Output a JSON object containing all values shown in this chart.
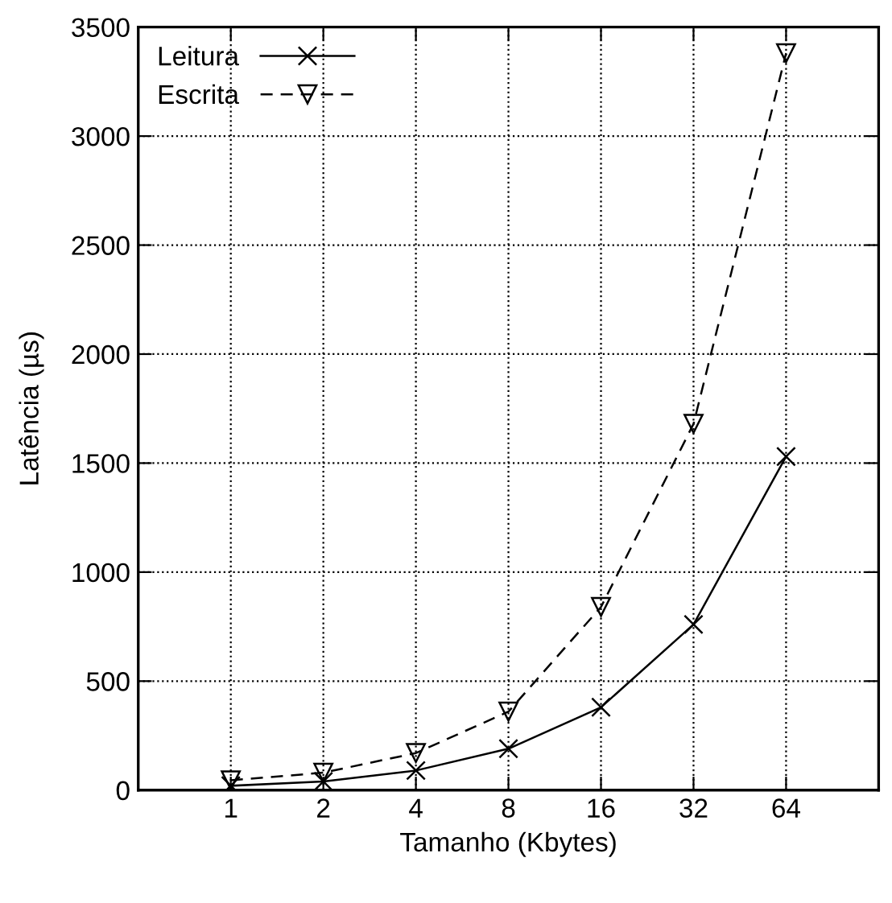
{
  "chart_data": {
    "type": "line",
    "xlabel": "Tamanho (Kbytes)",
    "ylabel": "Latência (µs)",
    "categories": [
      "1",
      "2",
      "4",
      "8",
      "16",
      "32",
      "64"
    ],
    "series": [
      {
        "name": "Leitura",
        "color": "#000000",
        "marker": "cross",
        "line_style": "solid",
        "values": [
          20,
          40,
          90,
          190,
          380,
          760,
          1530
        ]
      },
      {
        "name": "Escrita",
        "color": "#000000",
        "marker": "triangle",
        "line_style": "dashed",
        "values": [
          45,
          80,
          170,
          360,
          840,
          1680,
          3380
        ]
      }
    ],
    "ylim": [
      0,
      3500
    ],
    "yticks": [
      0,
      500,
      1000,
      1500,
      2000,
      2500,
      3000,
      3500
    ],
    "grid": true,
    "legend": "top left"
  }
}
